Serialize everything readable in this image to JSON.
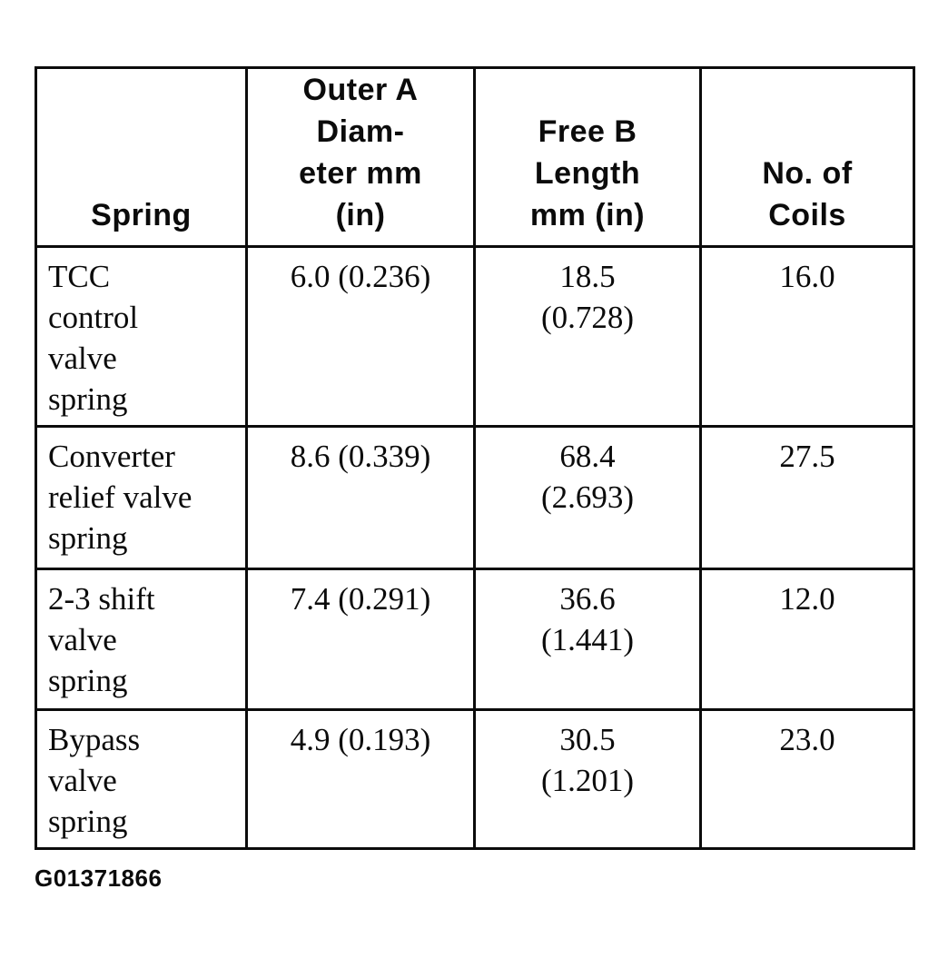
{
  "table": {
    "header": {
      "spring": "Spring",
      "outer_diameter": "Outer A\nDiam-\neter mm\n(in)",
      "free_length": "Free B\nLength\nmm (in)",
      "coils": "No. of\nCoils"
    },
    "rows": [
      {
        "spring": "TCC\ncontrol\nvalve\nspring",
        "outer_diameter": "6.0 (0.236)",
        "free_length": "18.5\n(0.728)",
        "coils": "16.0"
      },
      {
        "spring": "Converter\nrelief valve\nspring",
        "outer_diameter": "8.6 (0.339)",
        "free_length": "68.4\n(2.693)",
        "coils": "27.5"
      },
      {
        "spring": "2-3 shift\nvalve\nspring",
        "outer_diameter": "7.4 (0.291)",
        "free_length": "36.6\n(1.441)",
        "coils": "12.0"
      },
      {
        "spring": "Bypass\nvalve\nspring",
        "outer_diameter": "4.9 (0.193)",
        "free_length": "30.5\n(1.201)",
        "coils": "23.0"
      }
    ],
    "footer": {
      "figure_id": "G01371866"
    },
    "colors": {
      "ink": "#0b0b0b",
      "paper": "#ffffff"
    }
  }
}
